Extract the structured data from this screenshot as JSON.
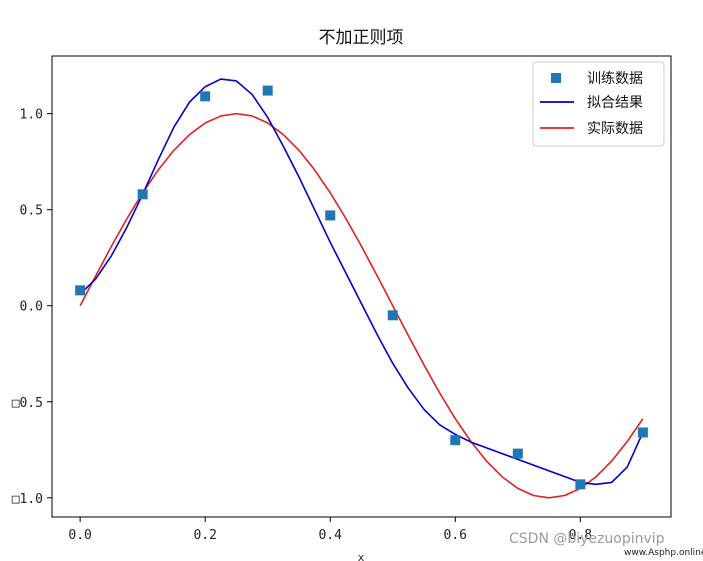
{
  "chart_data": {
    "type": "line",
    "title": "不加正则项",
    "xlabel": "x",
    "ylabel": "",
    "xlim": [
      -0.045,
      0.945
    ],
    "ylim": [
      -1.1,
      1.3
    ],
    "xticks": [
      0.0,
      0.2,
      0.4,
      0.6,
      0.8
    ],
    "xtick_labels": [
      "0.0",
      "0.2",
      "0.4",
      "0.6",
      "0.8"
    ],
    "yticks": [
      1.0,
      0.5,
      0.0,
      -0.5,
      -1.0
    ],
    "ytick_labels": [
      "1.0",
      "0.5",
      "0.0",
      "□0.5",
      "□1.0"
    ],
    "grid": false,
    "legend_position": "top-right",
    "series": [
      {
        "name": "训练数据",
        "kind": "scatter",
        "marker": "square",
        "color": "#1f77b4",
        "x": [
          0.0,
          0.1,
          0.2,
          0.3,
          0.4,
          0.5,
          0.6,
          0.7,
          0.8,
          0.9
        ],
        "y": [
          0.08,
          0.58,
          1.09,
          1.12,
          0.47,
          -0.05,
          -0.7,
          -0.77,
          -0.93,
          -0.66
        ]
      },
      {
        "name": "拟合结果",
        "kind": "line",
        "color": "#0000cc",
        "x": [
          0.0,
          0.025,
          0.05,
          0.075,
          0.1,
          0.125,
          0.15,
          0.175,
          0.2,
          0.225,
          0.25,
          0.275,
          0.3,
          0.325,
          0.35,
          0.375,
          0.4,
          0.425,
          0.45,
          0.475,
          0.5,
          0.525,
          0.55,
          0.575,
          0.6,
          0.625,
          0.65,
          0.675,
          0.7,
          0.725,
          0.75,
          0.775,
          0.8,
          0.825,
          0.85,
          0.875,
          0.9
        ],
        "y": [
          0.06,
          0.14,
          0.26,
          0.41,
          0.58,
          0.76,
          0.93,
          1.06,
          1.14,
          1.18,
          1.17,
          1.1,
          0.98,
          0.83,
          0.67,
          0.5,
          0.33,
          0.17,
          0.01,
          -0.15,
          -0.3,
          -0.43,
          -0.54,
          -0.62,
          -0.67,
          -0.71,
          -0.74,
          -0.77,
          -0.8,
          -0.83,
          -0.86,
          -0.89,
          -0.92,
          -0.93,
          -0.92,
          -0.84,
          -0.66
        ]
      },
      {
        "name": "实际数据",
        "kind": "line",
        "color": "#e32020",
        "x": [
          0.0,
          0.025,
          0.05,
          0.075,
          0.1,
          0.125,
          0.15,
          0.175,
          0.2,
          0.225,
          0.25,
          0.275,
          0.3,
          0.325,
          0.35,
          0.375,
          0.4,
          0.425,
          0.45,
          0.475,
          0.5,
          0.525,
          0.55,
          0.575,
          0.6,
          0.625,
          0.65,
          0.675,
          0.7,
          0.725,
          0.75,
          0.775,
          0.8,
          0.825,
          0.85,
          0.875,
          0.9
        ],
        "y": [
          0.0,
          0.156,
          0.309,
          0.454,
          0.588,
          0.707,
          0.809,
          0.891,
          0.951,
          0.988,
          1.0,
          0.988,
          0.951,
          0.891,
          0.809,
          0.707,
          0.588,
          0.454,
          0.309,
          0.156,
          0.0,
          -0.156,
          -0.309,
          -0.454,
          -0.588,
          -0.707,
          -0.809,
          -0.891,
          -0.951,
          -0.988,
          -1.0,
          -0.988,
          -0.951,
          -0.891,
          -0.809,
          -0.707,
          -0.588
        ]
      }
    ]
  },
  "watermark": {
    "csdn": "CSDN @biyezuopinvip",
    "site": "www.Asphp.online"
  }
}
